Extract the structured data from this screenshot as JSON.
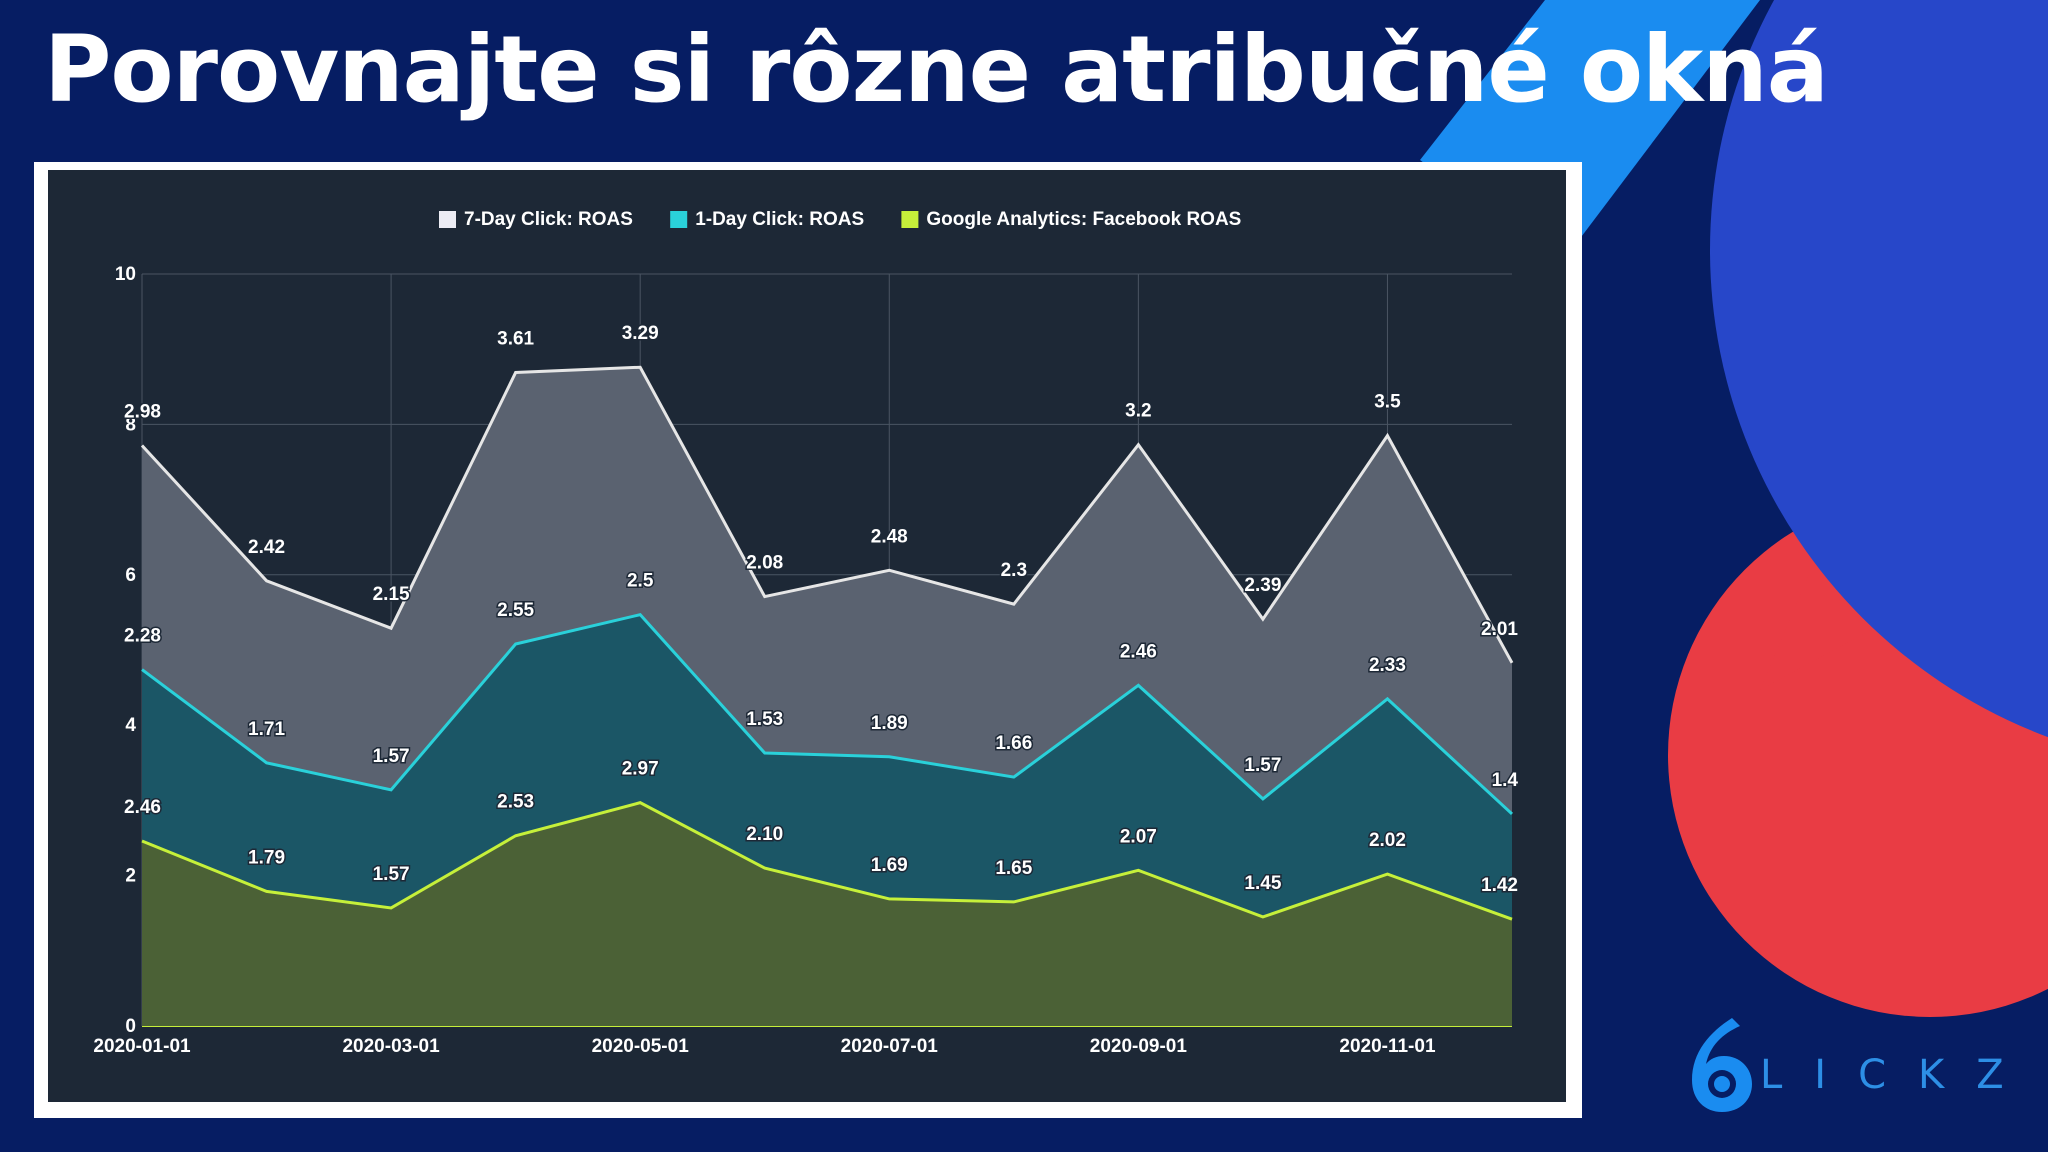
{
  "page": {
    "title": "Porovnajte si rôzne atribučné okná",
    "logo_text": "LICKZ",
    "colors": {
      "background": "#061d63",
      "accent_blue": "#1a8cf0",
      "blob_blue": "#2747c9",
      "blob_red": "#e93c44",
      "panel": "#1d2836"
    }
  },
  "chart_data": {
    "type": "area",
    "title": "",
    "xlabel": "",
    "ylabel": "",
    "ylim": [
      0,
      10
    ],
    "yticks": [
      "0",
      "2",
      "4",
      "6",
      "8",
      "10"
    ],
    "x": [
      "2020-01-01",
      "2020-02-01",
      "2020-03-01",
      "2020-04-01",
      "2020-05-01",
      "2020-06-01",
      "2020-07-01",
      "2020-08-01",
      "2020-09-01",
      "2020-10-01",
      "2020-11-01",
      "2020-12-01"
    ],
    "xtick_labels": [
      "2020-01-01",
      "2020-03-01",
      "2020-05-01",
      "2020-07-01",
      "2020-09-01",
      "2020-11-01"
    ],
    "stacked": true,
    "grid": true,
    "legend_position": "top-center",
    "series": [
      {
        "name": "7-Day Click: ROAS",
        "color": "#e6e6e6",
        "fill": "#5a6270",
        "values": [
          2.98,
          2.42,
          2.15,
          3.61,
          3.29,
          2.08,
          2.48,
          2.3,
          3.2,
          2.39,
          3.5,
          2.01
        ],
        "labels": [
          "2.98",
          "2.42",
          "2.15",
          "3.61",
          "3.29",
          "2.08",
          "2.48",
          "2.3",
          "3.2",
          "2.39",
          "3.5",
          "2.01"
        ]
      },
      {
        "name": "1-Day Click: ROAS",
        "color": "#2ad1da",
        "fill": "#1b5666",
        "values": [
          2.28,
          1.71,
          1.57,
          2.55,
          2.5,
          1.53,
          1.89,
          1.66,
          2.46,
          1.57,
          2.33,
          1.4
        ],
        "labels": [
          "2.28",
          "1.71",
          "1.57",
          "2.55",
          "2.5",
          "1.53",
          "1.89",
          "1.66",
          "2.46",
          "1.57",
          "2.33",
          "1.4"
        ]
      },
      {
        "name": "Google Analytics: Facebook ROAS",
        "color": "#c6f03a",
        "fill": "#4b6136",
        "values": [
          2.46,
          1.79,
          1.57,
          2.53,
          2.97,
          2.1,
          1.69,
          1.65,
          2.07,
          1.45,
          2.02,
          1.42
        ],
        "labels": [
          "2.46",
          "1.79",
          "1.57",
          "2.53",
          "2.97",
          "2.10",
          "1.69",
          "1.65",
          "2.07",
          "1.45",
          "2.02",
          "1.42"
        ]
      }
    ]
  }
}
